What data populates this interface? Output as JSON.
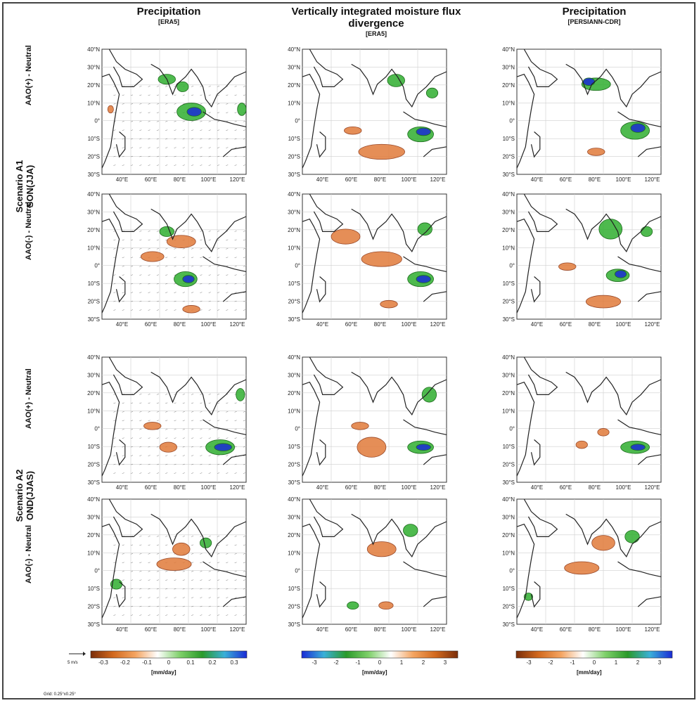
{
  "columns": [
    {
      "title": "Precipitation",
      "source": "[ERA5]"
    },
    {
      "title": "Vertically integrated moisture flux divergence",
      "source": "[ERA5]"
    },
    {
      "title": "Precipitation",
      "source": "[PERSIANN-CDR]"
    }
  ],
  "scenarios": [
    {
      "name": "Scenario A1",
      "season": "SON(JJA)",
      "rows": [
        "AAO(+) - Neutral",
        "AAO(-) - Neutral"
      ]
    },
    {
      "name": "Scenario A2",
      "season": "OND(JJAS)",
      "rows": [
        "AAO(+) - Neutral",
        "AAO(-) - Neutral"
      ]
    }
  ],
  "map": {
    "lat_ticks": [
      "40°N",
      "30°N",
      "20°N",
      "10°N",
      "0°",
      "10°S",
      "20°S",
      "30°S"
    ],
    "lon_ticks": [
      "40°E",
      "60°E",
      "80°E",
      "100°E",
      "120°E"
    ]
  },
  "colorbars": [
    {
      "ticks": [
        "-0.3",
        "-0.2",
        "-0.1",
        "0",
        "0.1",
        "0.2",
        "0.3"
      ],
      "units": "[mm/day]",
      "colors": [
        "#7a2e0a",
        "#d2691e",
        "#f4a460",
        "#ffffff",
        "#7fd06a",
        "#2a9a2a",
        "#3ab0d8",
        "#1a2bd6"
      ]
    },
    {
      "ticks": [
        "-3",
        "-2",
        "-1",
        "0",
        "1",
        "2",
        "3"
      ],
      "units": "[mm/day]",
      "colors": [
        "#1a2bd6",
        "#3ab0d8",
        "#2a9a2a",
        "#7fd06a",
        "#ffffff",
        "#f4a460",
        "#d2691e",
        "#7a2e0a"
      ]
    },
    {
      "ticks": [
        "-3",
        "-2",
        "-1",
        "0",
        "1",
        "2",
        "3"
      ],
      "units": "[mm/day]",
      "colors": [
        "#7a2e0a",
        "#d2691e",
        "#f4a460",
        "#ffffff",
        "#7fd06a",
        "#2a9a2a",
        "#3ab0d8",
        "#1a2bd6"
      ]
    }
  ],
  "vector_key": "5 m/s",
  "grid_note": "Grid: 0.25°x0.25°",
  "colors": {
    "positive": "#2fae2f",
    "strong_positive": "#1a2bd6",
    "negative": "#e07a3a",
    "contour": "#9a4a2a"
  }
}
